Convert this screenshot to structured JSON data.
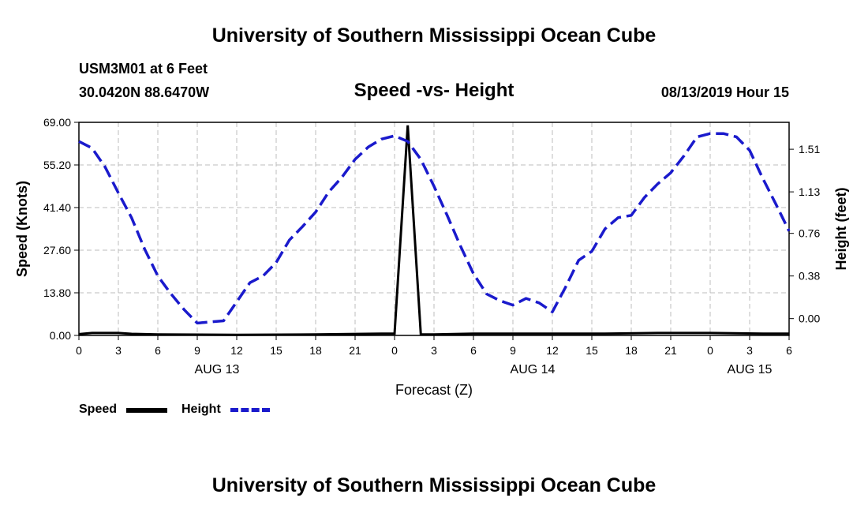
{
  "header": {
    "title_top": "University of Southern Mississippi Ocean Cube",
    "station": "USM3M01 at 6 Feet",
    "coords": "30.0420N 88.6470W",
    "subtitle": "Speed -vs- Height",
    "datetime": "08/13/2019 Hour 15",
    "title_bottom": "University of Southern Mississippi Ocean Cube"
  },
  "legend": {
    "speed_label": "Speed",
    "height_label": "Height",
    "speed_color": "#000000",
    "height_color": "#1a1acc"
  },
  "chart_data": {
    "type": "line",
    "title": "Speed -vs- Height",
    "xlabel": "Forecast (Z)",
    "ylabel": "Speed (Knots)",
    "ylabel_right": "Height (feet)",
    "xlim": [
      0,
      54
    ],
    "ylim": [
      0,
      69
    ],
    "ylim_right": [
      -0.15,
      1.75
    ],
    "grid": true,
    "x_ticks": [
      {
        "x": 0,
        "label": "0"
      },
      {
        "x": 3,
        "label": "3"
      },
      {
        "x": 6,
        "label": "6"
      },
      {
        "x": 9,
        "label": "9"
      },
      {
        "x": 12,
        "label": "12"
      },
      {
        "x": 15,
        "label": "15"
      },
      {
        "x": 18,
        "label": "18"
      },
      {
        "x": 21,
        "label": "21"
      },
      {
        "x": 24,
        "label": "0"
      },
      {
        "x": 27,
        "label": "3"
      },
      {
        "x": 30,
        "label": "6"
      },
      {
        "x": 33,
        "label": "9"
      },
      {
        "x": 36,
        "label": "12"
      },
      {
        "x": 39,
        "label": "15"
      },
      {
        "x": 42,
        "label": "18"
      },
      {
        "x": 45,
        "label": "21"
      },
      {
        "x": 48,
        "label": "0"
      },
      {
        "x": 51,
        "label": "3"
      },
      {
        "x": 54,
        "label": "6"
      }
    ],
    "date_labels": [
      {
        "x": 10.5,
        "label": "AUG 13"
      },
      {
        "x": 34.5,
        "label": "AUG 14"
      },
      {
        "x": 51,
        "label": "AUG 15"
      }
    ],
    "y_ticks": [
      {
        "v": 0,
        "label": "0.00"
      },
      {
        "v": 13.8,
        "label": "13.80"
      },
      {
        "v": 27.6,
        "label": "27.60"
      },
      {
        "v": 41.4,
        "label": "41.40"
      },
      {
        "v": 55.2,
        "label": "55.20"
      },
      {
        "v": 69,
        "label": "69.00"
      }
    ],
    "y_ticks_right": [
      {
        "v": 0.0,
        "label": "0.00"
      },
      {
        "v": 0.38,
        "label": "0.38"
      },
      {
        "v": 0.76,
        "label": "0.76"
      },
      {
        "v": 1.13,
        "label": "1.13"
      },
      {
        "v": 1.51,
        "label": "1.51"
      }
    ],
    "series": [
      {
        "name": "Speed",
        "axis": "left",
        "x": [
          0,
          1,
          3,
          4,
          6,
          12,
          18,
          23,
          24,
          25,
          26,
          27,
          30,
          36,
          40,
          44,
          48,
          52,
          54
        ],
        "values": [
          0.4,
          0.8,
          0.8,
          0.5,
          0.3,
          0.2,
          0.3,
          0.6,
          0.6,
          68,
          0.3,
          0.3,
          0.6,
          0.6,
          0.6,
          0.8,
          0.8,
          0.6,
          0.6
        ]
      },
      {
        "name": "Height",
        "axis": "right",
        "x": [
          0,
          1,
          2,
          3,
          4,
          5,
          6,
          7,
          8,
          9,
          10,
          11,
          12,
          13,
          14,
          15,
          16,
          17,
          18,
          19,
          20,
          21,
          22,
          23,
          24,
          25,
          26,
          27,
          28,
          29,
          30,
          31,
          32,
          33,
          34,
          35,
          36,
          37,
          38,
          39,
          40,
          41,
          42,
          43,
          44,
          45,
          46,
          47,
          48,
          49,
          50,
          51,
          52,
          53,
          54
        ],
        "values": [
          1.58,
          1.52,
          1.35,
          1.12,
          0.9,
          0.62,
          0.38,
          0.22,
          0.08,
          -0.04,
          -0.03,
          -0.02,
          0.15,
          0.32,
          0.38,
          0.5,
          0.7,
          0.82,
          0.95,
          1.13,
          1.26,
          1.42,
          1.53,
          1.6,
          1.63,
          1.58,
          1.42,
          1.18,
          0.92,
          0.65,
          0.4,
          0.22,
          0.16,
          0.12,
          0.18,
          0.14,
          0.06,
          0.28,
          0.52,
          0.6,
          0.8,
          0.9,
          0.92,
          1.08,
          1.2,
          1.3,
          1.45,
          1.62,
          1.65,
          1.65,
          1.62,
          1.5,
          1.25,
          1.02,
          0.78
        ]
      }
    ]
  }
}
